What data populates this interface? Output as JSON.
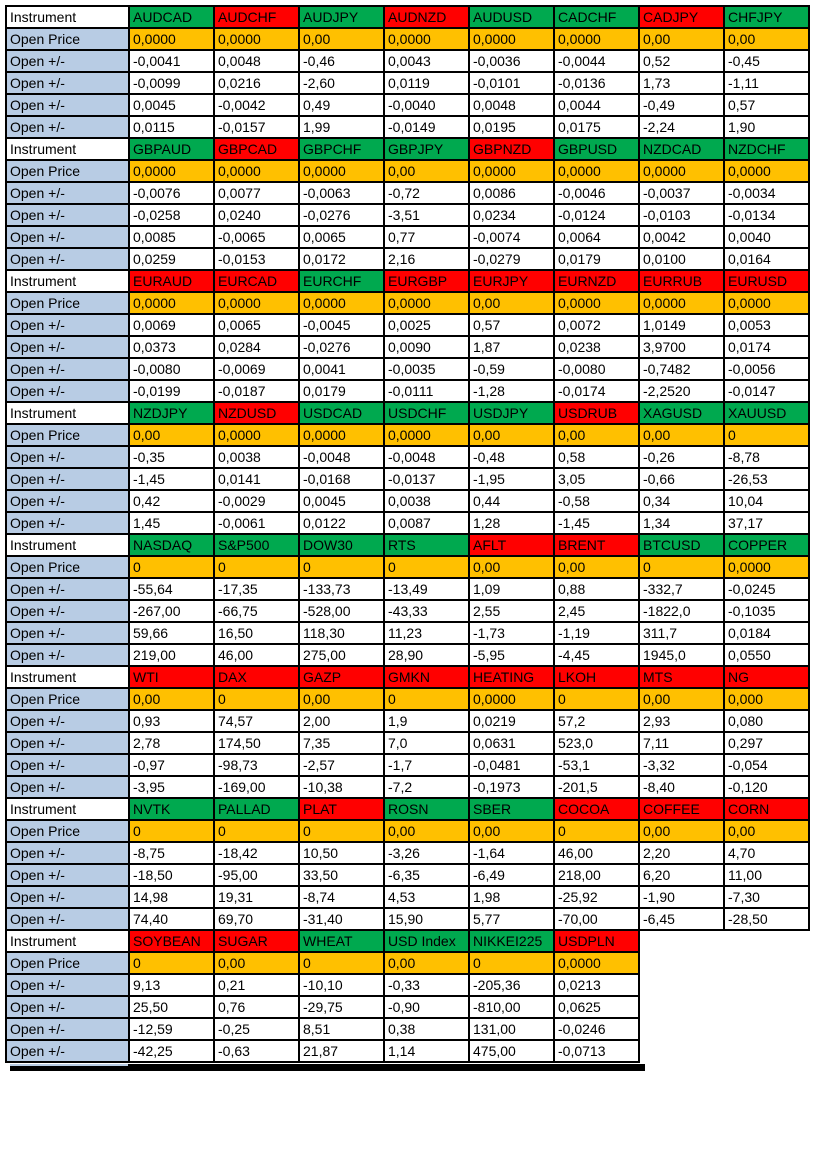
{
  "labels": {
    "instrument": "Instrument",
    "open_price": "Open Price",
    "open_delta": "Open +/-"
  },
  "colors": {
    "up_green": "#00A94F",
    "down_red": "#FF0000",
    "price_orange": "#FFC000",
    "label_blue": "#B8CCE4",
    "border_black": "#000000",
    "text_black": "#000000"
  },
  "blocks": [
    {
      "instruments": [
        {
          "name": "AUDCAD",
          "color": "green"
        },
        {
          "name": "AUDCHF",
          "color": "red"
        },
        {
          "name": "AUDJPY",
          "color": "green"
        },
        {
          "name": "AUDNZD",
          "color": "red"
        },
        {
          "name": "AUDUSD",
          "color": "green"
        },
        {
          "name": "CADCHF",
          "color": "green"
        },
        {
          "name": "CADJPY",
          "color": "red"
        },
        {
          "name": "CHFJPY",
          "color": "green"
        }
      ],
      "open_price": [
        "0,0000",
        "0,0000",
        "0,00",
        "0,0000",
        "0,0000",
        "0,0000",
        "0,00",
        "0,00"
      ],
      "open_deltas": [
        [
          "-0,0041",
          "0,0048",
          "-0,46",
          "0,0043",
          "-0,0036",
          "-0,0044",
          "0,52",
          "-0,45"
        ],
        [
          "-0,0099",
          "0,0216",
          "-2,60",
          "0,0119",
          "-0,0101",
          "-0,0136",
          "1,73",
          "-1,11"
        ],
        [
          "0,0045",
          "-0,0042",
          "0,49",
          "-0,0040",
          "0,0048",
          "0,0044",
          "-0,49",
          "0,57"
        ],
        [
          "0,0115",
          "-0,0157",
          "1,99",
          "-0,0149",
          "0,0195",
          "0,0175",
          "-2,24",
          "1,90"
        ]
      ]
    },
    {
      "instruments": [
        {
          "name": "GBPAUD",
          "color": "green"
        },
        {
          "name": "GBPCAD",
          "color": "red"
        },
        {
          "name": "GBPCHF",
          "color": "green"
        },
        {
          "name": "GBPJPY",
          "color": "green"
        },
        {
          "name": "GBPNZD",
          "color": "red"
        },
        {
          "name": "GBPUSD",
          "color": "green"
        },
        {
          "name": "NZDCAD",
          "color": "green"
        },
        {
          "name": "NZDCHF",
          "color": "green"
        }
      ],
      "open_price": [
        "0,0000",
        "0,0000",
        "0,0000",
        "0,00",
        "0,0000",
        "0,0000",
        "0,0000",
        "0,0000"
      ],
      "open_deltas": [
        [
          "-0,0076",
          "0,0077",
          "-0,0063",
          "-0,72",
          "0,0086",
          "-0,0046",
          "-0,0037",
          "-0,0034"
        ],
        [
          "-0,0258",
          "0,0240",
          "-0,0276",
          "-3,51",
          "0,0234",
          "-0,0124",
          "-0,0103",
          "-0,0134"
        ],
        [
          "0,0085",
          "-0,0065",
          "0,0065",
          "0,77",
          "-0,0074",
          "0,0064",
          "0,0042",
          "0,0040"
        ],
        [
          "0,0259",
          "-0,0153",
          "0,0172",
          "2,16",
          "-0,0279",
          "0,0179",
          "0,0100",
          "0,0164"
        ]
      ]
    },
    {
      "instruments": [
        {
          "name": "EURAUD",
          "color": "red"
        },
        {
          "name": "EURCAD",
          "color": "red"
        },
        {
          "name": "EURCHF",
          "color": "green"
        },
        {
          "name": "EURGBP",
          "color": "red"
        },
        {
          "name": "EURJPY",
          "color": "red"
        },
        {
          "name": "EURNZD",
          "color": "red"
        },
        {
          "name": "EURRUB",
          "color": "red"
        },
        {
          "name": "EURUSD",
          "color": "red"
        }
      ],
      "open_price": [
        "0,0000",
        "0,0000",
        "0,0000",
        "0,0000",
        "0,00",
        "0,0000",
        "0,0000",
        "0,0000"
      ],
      "open_deltas": [
        [
          "0,0069",
          "0,0065",
          "-0,0045",
          "0,0025",
          "0,57",
          "0,0072",
          "1,0149",
          "0,0053"
        ],
        [
          "0,0373",
          "0,0284",
          "-0,0276",
          "0,0090",
          "1,87",
          "0,0238",
          "3,9700",
          "0,0174"
        ],
        [
          "-0,0080",
          "-0,0069",
          "0,0041",
          "-0,0035",
          "-0,59",
          "-0,0080",
          "-0,7482",
          "-0,0056"
        ],
        [
          "-0,0199",
          "-0,0187",
          "0,0179",
          "-0,0111",
          "-1,28",
          "-0,0174",
          "-2,2520",
          "-0,0147"
        ]
      ]
    },
    {
      "instruments": [
        {
          "name": "NZDJPY",
          "color": "green"
        },
        {
          "name": "NZDUSD",
          "color": "red"
        },
        {
          "name": "USDCAD",
          "color": "green"
        },
        {
          "name": "USDCHF",
          "color": "green"
        },
        {
          "name": "USDJPY",
          "color": "green"
        },
        {
          "name": "USDRUB",
          "color": "red"
        },
        {
          "name": "XAGUSD",
          "color": "green"
        },
        {
          "name": "XAUUSD",
          "color": "green"
        }
      ],
      "open_price": [
        "0,00",
        "0,0000",
        "0,0000",
        "0,0000",
        "0,00",
        "0,00",
        "0,00",
        "0"
      ],
      "open_deltas": [
        [
          "-0,35",
          "0,0038",
          "-0,0048",
          "-0,0048",
          "-0,48",
          "0,58",
          "-0,26",
          "-8,78"
        ],
        [
          "-1,45",
          "0,0141",
          "-0,0168",
          "-0,0137",
          "-1,95",
          "3,05",
          "-0,66",
          "-26,53"
        ],
        [
          "0,42",
          "-0,0029",
          "0,0045",
          "0,0038",
          "0,44",
          "-0,58",
          "0,34",
          "10,04"
        ],
        [
          "1,45",
          "-0,0061",
          "0,0122",
          "0,0087",
          "1,28",
          "-1,45",
          "1,34",
          "37,17"
        ]
      ]
    },
    {
      "instruments": [
        {
          "name": "NASDAQ",
          "color": "green"
        },
        {
          "name": "S&P500",
          "color": "green"
        },
        {
          "name": "DOW30",
          "color": "green"
        },
        {
          "name": "RTS",
          "color": "green"
        },
        {
          "name": "AFLT",
          "color": "red"
        },
        {
          "name": "BRENT",
          "color": "red"
        },
        {
          "name": "BTCUSD",
          "color": "green"
        },
        {
          "name": "COPPER",
          "color": "green"
        }
      ],
      "open_price": [
        "0",
        "0",
        "0",
        "0",
        "0,00",
        "0,00",
        "0",
        "0,0000"
      ],
      "open_deltas": [
        [
          "-55,64",
          "-17,35",
          "-133,73",
          "-13,49",
          "1,09",
          "0,88",
          "-332,7",
          "-0,0245"
        ],
        [
          "-267,00",
          "-66,75",
          "-528,00",
          "-43,33",
          "2,55",
          "2,45",
          "-1822,0",
          "-0,1035"
        ],
        [
          "59,66",
          "16,50",
          "118,30",
          "11,23",
          "-1,73",
          "-1,19",
          "311,7",
          "0,0184"
        ],
        [
          "219,00",
          "46,00",
          "275,00",
          "28,90",
          "-5,95",
          "-4,45",
          "1945,0",
          "0,0550"
        ]
      ]
    },
    {
      "instruments": [
        {
          "name": "WTI",
          "color": "red"
        },
        {
          "name": "DAX",
          "color": "red"
        },
        {
          "name": "GAZP",
          "color": "red"
        },
        {
          "name": "GMKN",
          "color": "red"
        },
        {
          "name": "HEATING",
          "color": "red"
        },
        {
          "name": "LKOH",
          "color": "red"
        },
        {
          "name": "MTS",
          "color": "red"
        },
        {
          "name": "NG",
          "color": "red"
        }
      ],
      "open_price": [
        "0,00",
        "0",
        "0,00",
        "0",
        "0,0000",
        "0",
        "0,00",
        "0,000"
      ],
      "open_deltas": [
        [
          "0,93",
          "74,57",
          "2,00",
          "1,9",
          "0,0219",
          "57,2",
          "2,93",
          "0,080"
        ],
        [
          "2,78",
          "174,50",
          "7,35",
          "7,0",
          "0,0631",
          "523,0",
          "7,11",
          "0,297"
        ],
        [
          "-0,97",
          "-98,73",
          "-2,57",
          "-1,7",
          "-0,0481",
          "-53,1",
          "-3,32",
          "-0,054"
        ],
        [
          "-3,95",
          "-169,00",
          "-10,38",
          "-7,2",
          "-0,1973",
          "-201,5",
          "-8,40",
          "-0,120"
        ]
      ]
    },
    {
      "instruments": [
        {
          "name": "NVTK",
          "color": "green"
        },
        {
          "name": "PALLAD",
          "color": "green"
        },
        {
          "name": "PLAT",
          "color": "red"
        },
        {
          "name": "ROSN",
          "color": "green"
        },
        {
          "name": "SBER",
          "color": "green"
        },
        {
          "name": "COCOA",
          "color": "red"
        },
        {
          "name": "COFFEE",
          "color": "red"
        },
        {
          "name": "CORN",
          "color": "red"
        }
      ],
      "open_price": [
        "0",
        "0",
        "0",
        "0,00",
        "0,00",
        "0",
        "0,00",
        "0,00"
      ],
      "open_deltas": [
        [
          "-8,75",
          "-18,42",
          "10,50",
          "-3,26",
          "-1,64",
          "46,00",
          "2,20",
          "4,70"
        ],
        [
          "-18,50",
          "-95,00",
          "33,50",
          "-6,35",
          "-6,49",
          "218,00",
          "6,20",
          "11,00"
        ],
        [
          "14,98",
          "19,31",
          "-8,74",
          "4,53",
          "1,98",
          "-25,92",
          "-1,90",
          "-7,30"
        ],
        [
          "74,40",
          "69,70",
          "-31,40",
          "15,90",
          "5,77",
          "-70,00",
          "-6,45",
          "-28,50"
        ]
      ]
    },
    {
      "instruments": [
        {
          "name": "SOYBEAN",
          "color": "red",
          "small": true
        },
        {
          "name": "SUGAR",
          "color": "red"
        },
        {
          "name": "WHEAT",
          "color": "green"
        },
        {
          "name": "USD Index",
          "color": "green",
          "small": true
        },
        {
          "name": "NIKKEI225",
          "color": "green",
          "small": true
        },
        {
          "name": "USDPLN",
          "color": "red"
        }
      ],
      "open_price": [
        "0",
        "0,00",
        "0",
        "0,00",
        "0",
        "0,0000"
      ],
      "open_deltas": [
        [
          "9,13",
          "0,21",
          "-10,10",
          "-0,33",
          "-205,36",
          "0,0213"
        ],
        [
          "25,50",
          "0,76",
          "-29,75",
          "-0,90",
          "-810,00",
          "0,0625"
        ],
        [
          "-12,59",
          "-0,25",
          "8,51",
          "0,38",
          "131,00",
          "-0,0246"
        ],
        [
          "-42,25",
          "-0,63",
          "21,87",
          "1,14",
          "475,00",
          "-0,0713"
        ]
      ]
    }
  ]
}
